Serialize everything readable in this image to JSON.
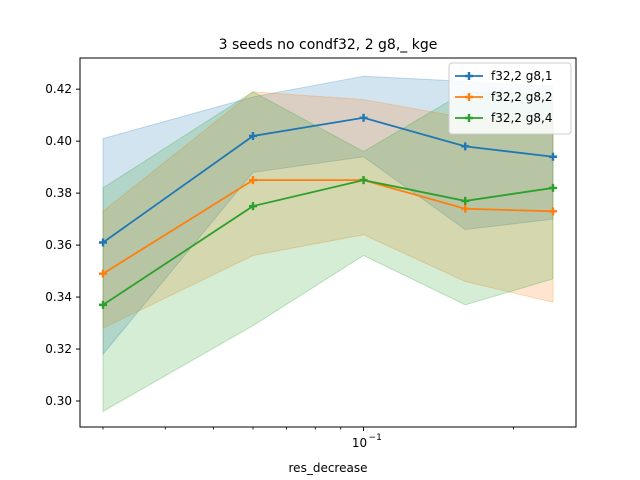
{
  "chart_data": {
    "type": "line",
    "title": "3 seeds no condf32, 2 g8,_ kge",
    "xlabel": "res_decrease",
    "ylabel": "",
    "x": [
      0.03,
      0.06,
      0.1,
      0.16,
      0.24
    ],
    "xscale": "log",
    "xticks": [
      {
        "value": 0.1,
        "label": "10",
        "exp": "−1"
      }
    ],
    "ylim": [
      0.29,
      0.432
    ],
    "yticks": [
      0.3,
      0.32,
      0.34,
      0.36,
      0.38,
      0.4,
      0.42
    ],
    "grid": false,
    "legend": "top-right",
    "series": [
      {
        "name": "f32,2 g8,1",
        "color": "#1f77b4",
        "values": [
          0.361,
          0.402,
          0.409,
          0.398,
          0.394
        ],
        "band_low": [
          0.318,
          0.388,
          0.394,
          0.366,
          0.37
        ],
        "band_high": [
          0.401,
          0.417,
          0.425,
          0.423,
          0.421
        ]
      },
      {
        "name": "f32,2 g8,2",
        "color": "#ff7f0e",
        "values": [
          0.349,
          0.385,
          0.385,
          0.374,
          0.373
        ],
        "band_low": [
          0.328,
          0.356,
          0.364,
          0.346,
          0.338
        ],
        "band_high": [
          0.373,
          0.419,
          0.416,
          0.409,
          0.408
        ]
      },
      {
        "name": "f32,2 g8,4",
        "color": "#2ca02c",
        "values": [
          0.337,
          0.375,
          0.385,
          0.377,
          0.382
        ],
        "band_low": [
          0.296,
          0.329,
          0.356,
          0.337,
          0.347
        ],
        "band_high": [
          0.382,
          0.419,
          0.396,
          0.419,
          0.418
        ]
      }
    ]
  }
}
